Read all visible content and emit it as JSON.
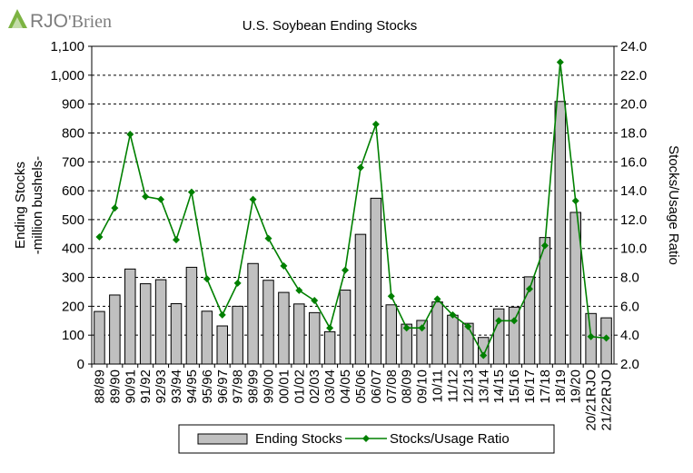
{
  "brand": {
    "name": "RJO'Brien",
    "logo_text_main": "RJO",
    "logo_text_suffix": "'Brien",
    "mark_color": "#7cb342"
  },
  "chart_data": {
    "type": "bar",
    "title": "U.S. Soybean Ending Stocks",
    "categories": [
      "88/89",
      "89/90",
      "90/91",
      "91/92",
      "92/93",
      "93/94",
      "94/95",
      "95/96",
      "96/97",
      "97/98",
      "98/99",
      "99/00",
      "00/01",
      "01/02",
      "02/03",
      "03/04",
      "04/05",
      "05/06",
      "06/07",
      "07/08",
      "08/09",
      "09/10",
      "10/11",
      "11/12",
      "12/13",
      "13/14",
      "14/15",
      "15/16",
      "16/17",
      "17/18",
      "18/19",
      "19/20",
      "20/21RJO",
      "21/22RJO"
    ],
    "series": [
      {
        "name": "Ending Stocks",
        "type": "bar",
        "axis": "left",
        "color": "#c0c0c0",
        "values": [
          182,
          239,
          329,
          278,
          292,
          209,
          335,
          183,
          132,
          200,
          348,
          290,
          248,
          208,
          178,
          112,
          256,
          449,
          574,
          205,
          138,
          151,
          215,
          169,
          141,
          92,
          191,
          197,
          302,
          438,
          909,
          525,
          175,
          160
        ]
      },
      {
        "name": "Stocks/Usage Ratio",
        "type": "line",
        "axis": "right",
        "color": "#008000",
        "values": [
          10.8,
          12.8,
          17.9,
          13.6,
          13.4,
          10.6,
          13.9,
          7.9,
          5.4,
          7.6,
          13.4,
          10.7,
          8.8,
          7.1,
          6.4,
          4.5,
          8.5,
          15.6,
          18.6,
          6.7,
          4.5,
          4.5,
          6.5,
          5.4,
          4.6,
          2.6,
          5.0,
          5.0,
          7.2,
          10.2,
          22.9,
          13.3,
          3.9,
          3.8
        ]
      }
    ],
    "y_left": {
      "label_line1": "Ending Stocks",
      "label_line2": "-million bushels-",
      "min": 0,
      "max": 1100,
      "step": 100,
      "tick_labels": [
        "0",
        "100",
        "200",
        "300",
        "400",
        "500",
        "600",
        "700",
        "800",
        "900",
        "1,000",
        "1,100"
      ]
    },
    "y_right": {
      "label": "Stocks/Usage Ratio",
      "min": 2.0,
      "max": 24.0,
      "step": 2.0,
      "tick_labels": [
        "2.0",
        "4.0",
        "6.0",
        "8.0",
        "10.0",
        "12.0",
        "14.0",
        "16.0",
        "18.0",
        "20.0",
        "22.0",
        "24.0"
      ]
    },
    "grid": "horizontal-dashed",
    "legend": {
      "position": "bottom"
    }
  }
}
